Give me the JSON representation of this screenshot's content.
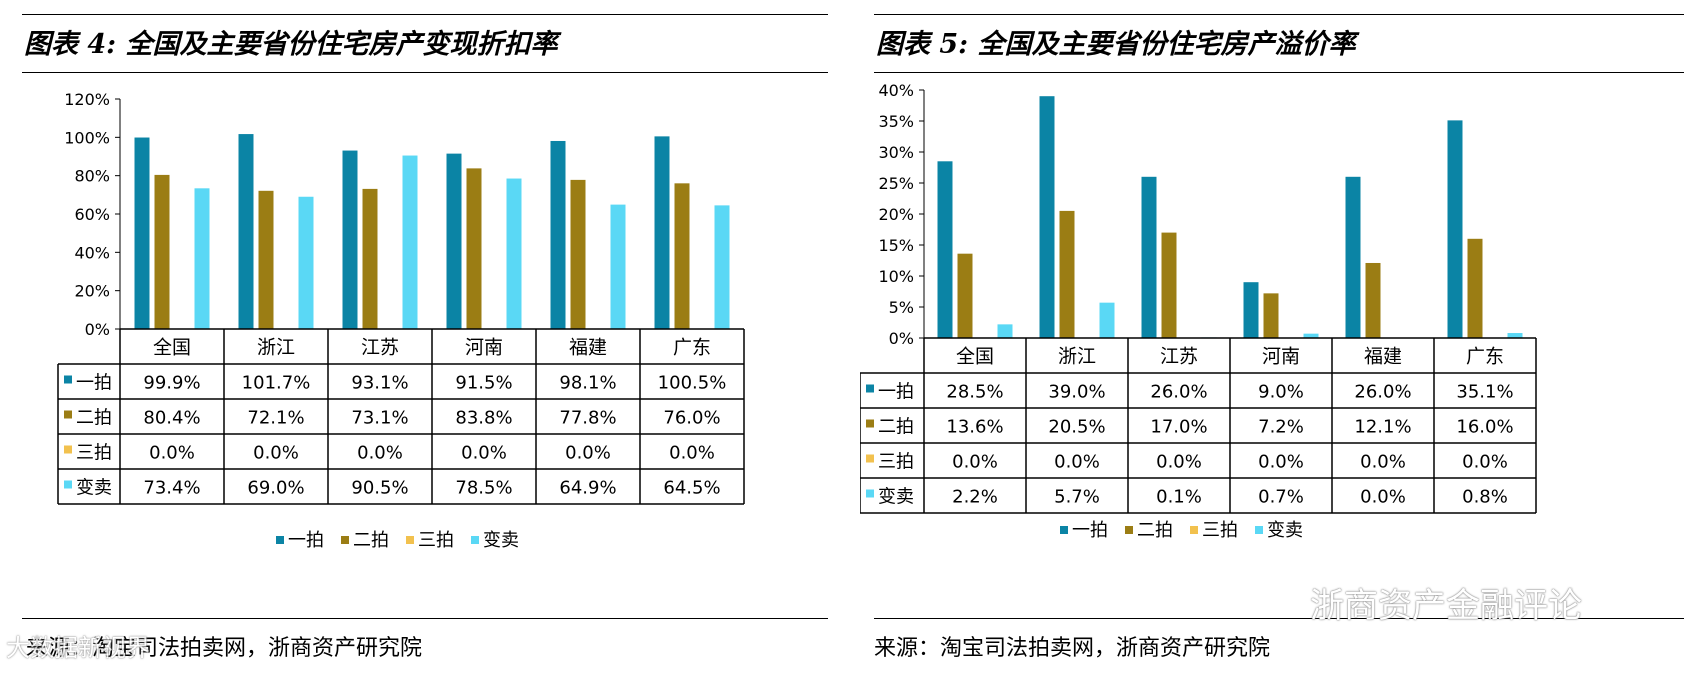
{
  "chart_data": [
    {
      "type": "bar",
      "title": "图表 4: 全国及主要省份住宅房产变现折扣率",
      "categories": [
        "全国",
        "浙江",
        "江苏",
        "河南",
        "福建",
        "广东"
      ],
      "ylim": [
        0,
        120
      ],
      "yticks": [
        "0%",
        "20%",
        "40%",
        "60%",
        "80%",
        "100%",
        "120%"
      ],
      "series": [
        {
          "name": "一拍",
          "color": "#0b84a5",
          "values": [
            99.9,
            101.7,
            93.1,
            91.5,
            98.1,
            100.5
          ],
          "labels": [
            "99.9%",
            "101.7%",
            "93.1%",
            "91.5%",
            "98.1%",
            "100.5%"
          ]
        },
        {
          "name": "二拍",
          "color": "#9b7d14",
          "values": [
            80.4,
            72.1,
            73.1,
            83.8,
            77.8,
            76.0
          ],
          "labels": [
            "80.4%",
            "72.1%",
            "73.1%",
            "83.8%",
            "77.8%",
            "76.0%"
          ]
        },
        {
          "name": "三拍",
          "color": "#f2c14e",
          "values": [
            0,
            0,
            0,
            0,
            0,
            0
          ],
          "labels": [
            "0.0%",
            "0.0%",
            "0.0%",
            "0.0%",
            "0.0%",
            "0.0%"
          ]
        },
        {
          "name": "变卖",
          "color": "#5ad8f5",
          "values": [
            73.4,
            69.0,
            90.5,
            78.5,
            64.9,
            64.5
          ],
          "labels": [
            "73.4%",
            "69.0%",
            "90.5%",
            "78.5%",
            "64.9%",
            "64.5%"
          ]
        }
      ],
      "legend": [
        "一拍",
        "二拍",
        "三拍",
        "变卖"
      ],
      "source": "来源：淘宝司法拍卖网，浙商资产研究院"
    },
    {
      "type": "bar",
      "title": "图表 5: 全国及主要省份住宅房产溢价率",
      "categories": [
        "全国",
        "浙江",
        "江苏",
        "河南",
        "福建",
        "广东"
      ],
      "ylim": [
        0,
        40
      ],
      "yticks": [
        "0%",
        "5%",
        "10%",
        "15%",
        "20%",
        "25%",
        "30%",
        "35%",
        "40%"
      ],
      "series": [
        {
          "name": "一拍",
          "color": "#0b84a5",
          "values": [
            28.5,
            39.0,
            26.0,
            9.0,
            26.0,
            35.1
          ],
          "labels": [
            "28.5%",
            "39.0%",
            "26.0%",
            "9.0%",
            "26.0%",
            "35.1%"
          ]
        },
        {
          "name": "二拍",
          "color": "#9b7d14",
          "values": [
            13.6,
            20.5,
            17.0,
            7.2,
            12.1,
            16.0
          ],
          "labels": [
            "13.6%",
            "20.5%",
            "17.0%",
            "7.2%",
            "12.1%",
            "16.0%"
          ]
        },
        {
          "name": "三拍",
          "color": "#f2c14e",
          "values": [
            0,
            0,
            0,
            0,
            0,
            0
          ],
          "labels": [
            "0.0%",
            "0.0%",
            "0.0%",
            "0.0%",
            "0.0%",
            "0.0%"
          ]
        },
        {
          "name": "变卖",
          "color": "#5ad8f5",
          "values": [
            2.2,
            5.7,
            0.1,
            0.7,
            0.0,
            0.8
          ],
          "labels": [
            "2.2%",
            "5.7%",
            "0.1%",
            "0.7%",
            "0.0%",
            "0.8%"
          ]
        }
      ],
      "legend": [
        "一拍",
        "二拍",
        "三拍",
        "变卖"
      ],
      "source": "来源：淘宝司法拍卖网，浙商资产研究院"
    }
  ],
  "watermarks": {
    "right": "浙商资产金融评论",
    "left": "大数据新视界"
  }
}
